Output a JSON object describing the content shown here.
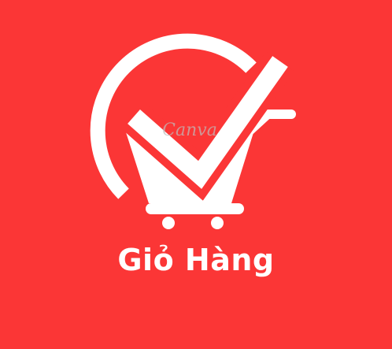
{
  "brand": {
    "title": "Giỏ Hàng",
    "watermark": "Canva",
    "icon": "shopping-cart-checkmark-icon"
  },
  "colors": {
    "background": "#fb3636",
    "foreground": "#ffffff"
  }
}
